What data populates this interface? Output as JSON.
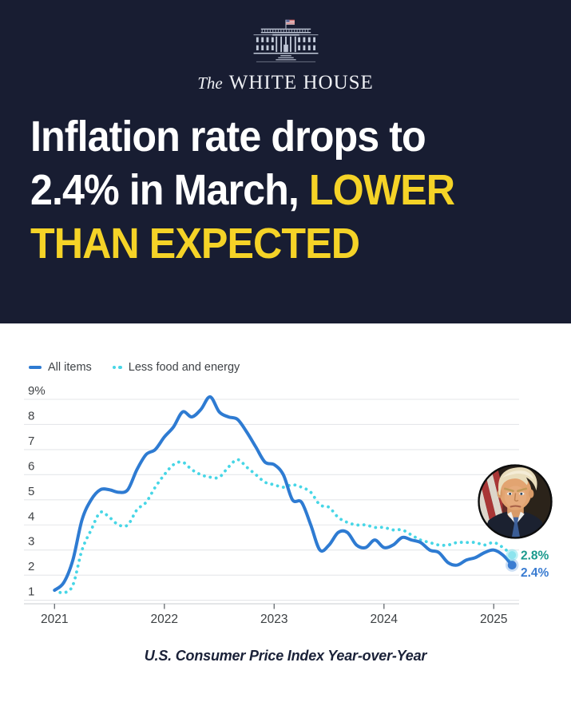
{
  "theme": {
    "banner_navy": "#181d32",
    "headline_white": "#ffffff",
    "headline_yellow": "#f5d327",
    "caption_navy": "#1a2138"
  },
  "header": {
    "brand_pre": "The",
    "brand_name": "WHITE HOUSE",
    "headline": {
      "line1": "Inflation rate drops to",
      "line2_white": "2.4% in March, ",
      "line2_yellow": "LOWER",
      "line3_yellow": "THAN EXPECTED"
    }
  },
  "chart_data": {
    "type": "line",
    "title": "U.S. Consumer Price Index Year-over-Year",
    "x_unit": "month",
    "x_start": "2021-01",
    "x_end": "2025-03",
    "x_tick_labels": [
      "2021",
      "2022",
      "2023",
      "2024",
      "2025"
    ],
    "y_tick_labels": [
      "9%",
      "8",
      "7",
      "6",
      "5",
      "4",
      "3",
      "2",
      "1"
    ],
    "ylim": [
      1,
      9
    ],
    "grid": true,
    "legend_position": "top-left",
    "series": [
      {
        "name": "All items",
        "style": "solid",
        "color": "#2e7bd2",
        "end_dot_color": "#3a7cd1",
        "end_label": "2.4%",
        "end_label_color": "#3a7cd1",
        "values": [
          1.4,
          1.7,
          2.6,
          4.2,
          5.0,
          5.4,
          5.4,
          5.3,
          5.4,
          6.2,
          6.8,
          7.0,
          7.5,
          7.9,
          8.5,
          8.3,
          8.6,
          9.1,
          8.5,
          8.3,
          8.2,
          7.7,
          7.1,
          6.5,
          6.4,
          6.0,
          5.0,
          4.9,
          4.0,
          3.0,
          3.2,
          3.7,
          3.7,
          3.2,
          3.1,
          3.4,
          3.1,
          3.2,
          3.5,
          3.4,
          3.3,
          3.0,
          2.9,
          2.5,
          2.4,
          2.6,
          2.7,
          2.9,
          3.0,
          2.8,
          2.4
        ]
      },
      {
        "name": "Less food and energy",
        "style": "dotted",
        "color": "#47d6e6",
        "end_dot_color": "#8de4ee",
        "end_label": "2.8%",
        "end_label_color": "#1a9a8d",
        "values": [
          1.4,
          1.3,
          1.6,
          3.0,
          3.8,
          4.5,
          4.3,
          4.0,
          4.0,
          4.6,
          4.9,
          5.5,
          6.0,
          6.4,
          6.5,
          6.2,
          6.0,
          5.9,
          5.9,
          6.3,
          6.6,
          6.3,
          6.0,
          5.7,
          5.6,
          5.5,
          5.6,
          5.5,
          5.3,
          4.8,
          4.7,
          4.3,
          4.1,
          4.0,
          4.0,
          3.9,
          3.9,
          3.8,
          3.8,
          3.6,
          3.4,
          3.3,
          3.2,
          3.2,
          3.3,
          3.3,
          3.3,
          3.2,
          3.3,
          3.1,
          2.8
        ]
      }
    ]
  }
}
